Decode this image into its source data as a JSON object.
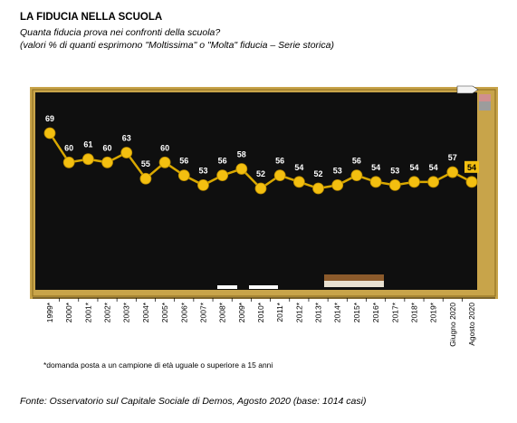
{
  "header": {
    "title": "LA FIDUCIA NELLA SCUOLA",
    "subtitle": "Quanta fiducia prova nei confronti della scuola?",
    "note": "(valori % di quanti esprimono \"Moltissima\" o \"Molta\" fiducia – Serie storica)"
  },
  "footnote": "*domanda posta a un campione di età uguale o superiore a 15 anni",
  "source": "Fonte: Osservatorio sul Capitale Sociale di Demos, Agosto 2020 (base: 1014 casi)",
  "colors": {
    "board": "#0f0f0f",
    "frame": "#c8a44a",
    "line": "#d9a800",
    "marker": "#f3bf10",
    "label": "#ffffff",
    "highlight_box": "#f3bf10"
  },
  "chart_data": {
    "type": "line",
    "title": "LA FIDUCIA NELLA SCUOLA",
    "categories": [
      "1999*",
      "2000*",
      "2001*",
      "2002*",
      "2003*",
      "2004*",
      "2005*",
      "2006*",
      "2007*",
      "2008*",
      "2009*",
      "2010*",
      "2011*",
      "2012*",
      "2013*",
      "2014*",
      "2015*",
      "2016*",
      "2017*",
      "2018*",
      "2019*",
      "Giugno 2020",
      "Agosto 2020"
    ],
    "series": [
      {
        "values": [
          69,
          60,
          61,
          60,
          63,
          55,
          60,
          56,
          53,
          56,
          58,
          52,
          56,
          54,
          52,
          53,
          56,
          54,
          53,
          54,
          54,
          57,
          54
        ]
      }
    ],
    "highlighted_point": "Agosto 2020",
    "xlabel": "",
    "ylabel": "",
    "grid": false,
    "legend": "none"
  }
}
